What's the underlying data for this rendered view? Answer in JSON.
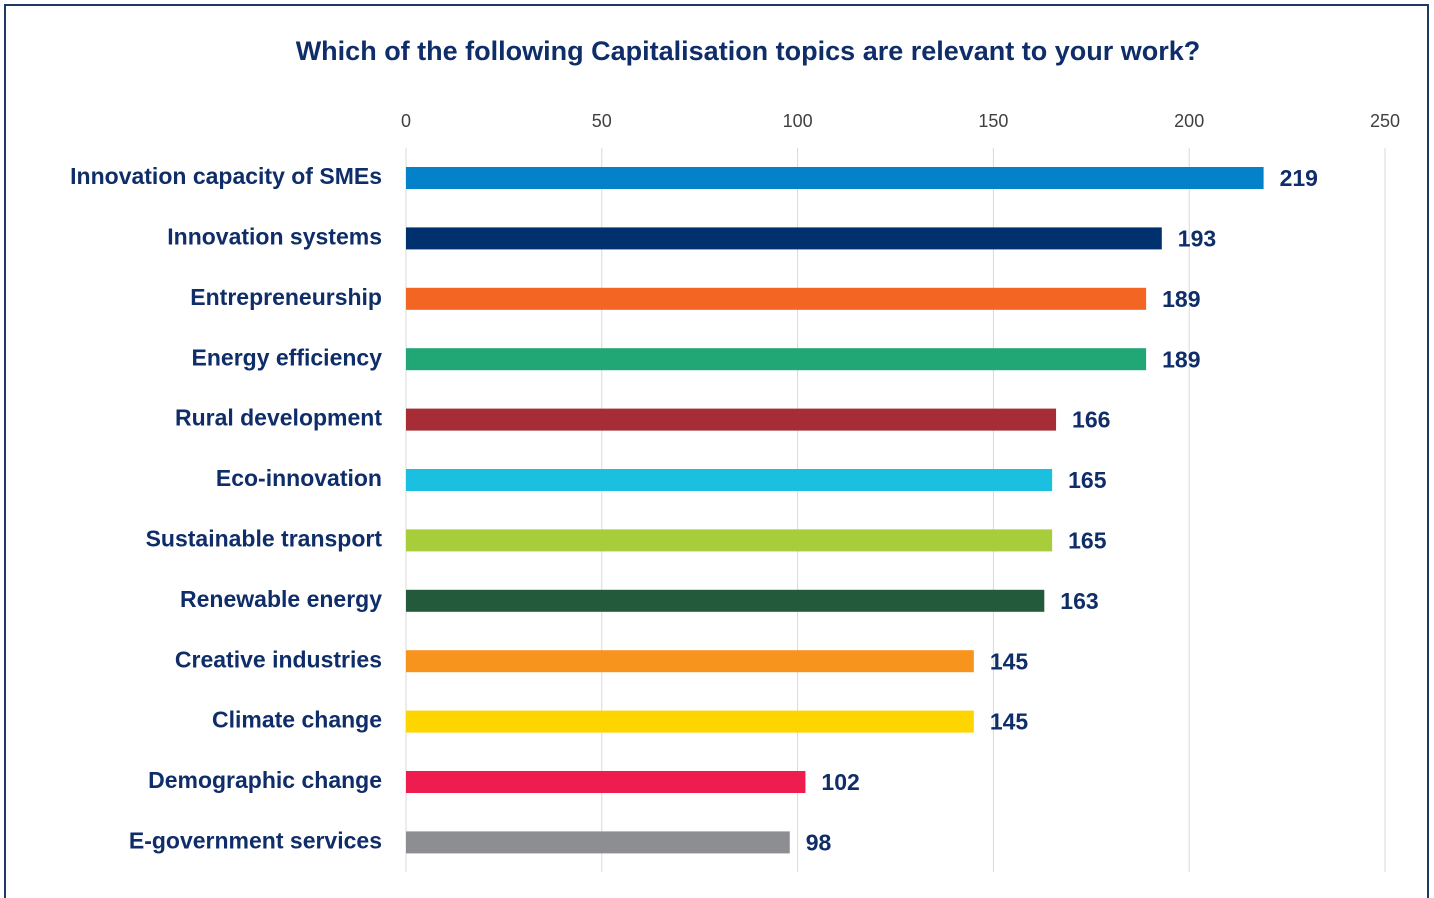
{
  "chart_data": {
    "type": "barh",
    "title": "Which of the following Capitalisation topics are relevant to your work?",
    "categories": [
      "Innovation capacity of SMEs",
      "Innovation systems",
      "Entrepreneurship",
      "Energy efficiency",
      "Rural development",
      "Eco-innovation",
      "Sustainable transport",
      "Renewable energy",
      "Creative industries",
      "Climate change",
      "Demographic change",
      "E-government services"
    ],
    "values": [
      219,
      193,
      189,
      189,
      166,
      165,
      165,
      163,
      145,
      145,
      102,
      98
    ],
    "colors": [
      "#0482c9",
      "#00306e",
      "#f26522",
      "#21a675",
      "#a62d35",
      "#1bbfe0",
      "#a8cd3a",
      "#225a3b",
      "#f7941d",
      "#ffd500",
      "#ee1c4f",
      "#8c8e91"
    ],
    "xlim": [
      0,
      250
    ],
    "xticks": [
      0,
      50,
      100,
      150,
      200,
      250
    ],
    "grid": true
  }
}
